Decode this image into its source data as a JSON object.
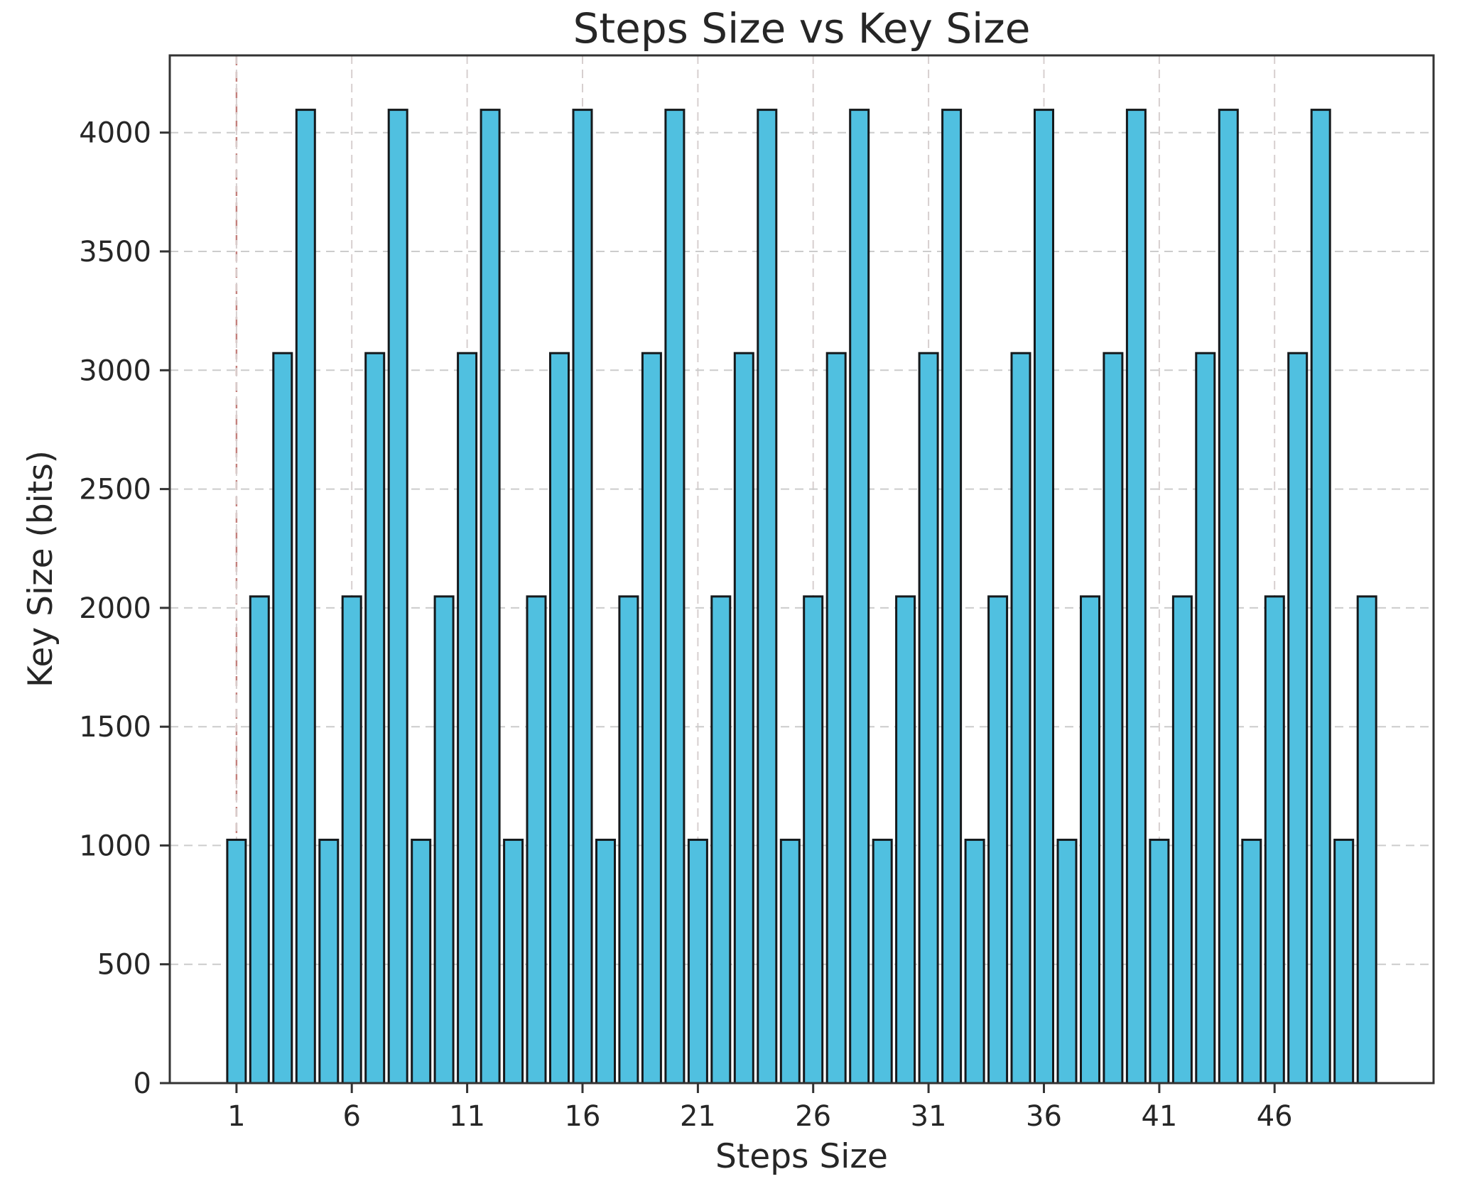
{
  "chart_data": {
    "type": "bar",
    "title": "Steps Size vs Key Size",
    "xlabel": "Steps Size",
    "ylabel": "Key Size (bits)",
    "x": [
      1,
      2,
      3,
      4,
      5,
      6,
      7,
      8,
      9,
      10,
      11,
      12,
      13,
      14,
      15,
      16,
      17,
      18,
      19,
      20,
      21,
      22,
      23,
      24,
      25,
      26,
      27,
      28,
      29,
      30,
      31,
      32,
      33,
      34,
      35,
      36,
      37,
      38,
      39,
      40,
      41,
      42,
      43,
      44,
      45,
      46,
      47,
      48,
      49,
      50
    ],
    "values": [
      1024,
      2048,
      3072,
      4096,
      1024,
      2048,
      3072,
      4096,
      1024,
      2048,
      3072,
      4096,
      1024,
      2048,
      3072,
      4096,
      1024,
      2048,
      3072,
      4096,
      1024,
      2048,
      3072,
      4096,
      1024,
      2048,
      3072,
      4096,
      1024,
      2048,
      3072,
      4096,
      1024,
      2048,
      3072,
      4096,
      1024,
      2048,
      3072,
      4096,
      1024,
      2048,
      3072,
      4096,
      1024,
      2048,
      3072,
      4096,
      1024,
      2048
    ],
    "bar_width": 0.8,
    "xlim": [
      -1.89,
      52.89
    ],
    "ylim": [
      0,
      4325
    ],
    "xticks": [
      1,
      6,
      11,
      16,
      21,
      26,
      31,
      36,
      41,
      46
    ],
    "yticks": [
      0,
      500,
      1000,
      1500,
      2000,
      2500,
      3000,
      3500,
      4000
    ],
    "grid": {
      "horizontal": true,
      "vertical": true,
      "linestyle": "dashed",
      "horizontal_color": "#cccccc",
      "vertical_color": "#d7cfcf"
    },
    "annotations": [
      {
        "type": "vline",
        "x": 1,
        "style": "dashed",
        "color": "#c4817d"
      }
    ],
    "legend": "none",
    "style": {
      "bar_color": "#50c0e0",
      "bar_edge_color": "#15191c",
      "spine_color": "#333333",
      "tick_color": "#333333",
      "text_color": "#262626",
      "background": "#ffffff"
    }
  }
}
